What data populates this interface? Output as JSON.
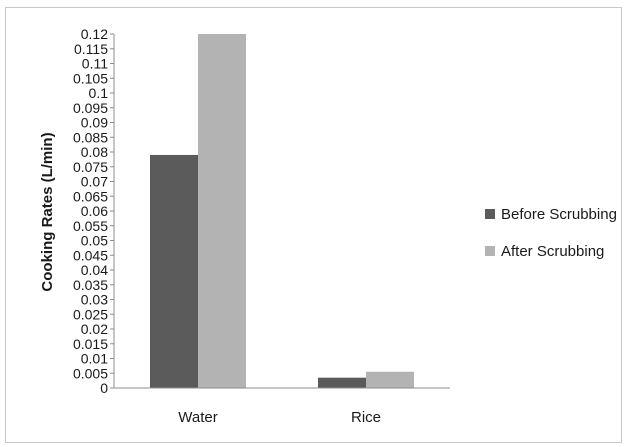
{
  "chart_data": {
    "type": "bar",
    "title": "",
    "xlabel": "",
    "ylabel": "Cooking Rates (L/min)",
    "categories": [
      "Water",
      "Rice"
    ],
    "series": [
      {
        "name": "Before Scrubbing",
        "values": [
          0.079,
          0.0035
        ],
        "color": "#5b5b5b"
      },
      {
        "name": "After Scrubbing",
        "values": [
          0.12,
          0.0055
        ],
        "color": "#b3b3b3"
      }
    ],
    "ylim": [
      0,
      0.12
    ],
    "yticks": [
      "0",
      "0.005",
      "0.01",
      "0.015",
      "0.02",
      "0.025",
      "0.03",
      "0.035",
      "0.04",
      "0.045",
      "0.05",
      "0.055",
      "0.06",
      "0.065",
      "0.07",
      "0.075",
      "0.08",
      "0.085",
      "0.09",
      "0.095",
      "0.1",
      "0.105",
      "0.11",
      "0.115",
      "0.12"
    ],
    "grid": false,
    "legend_position": "right"
  }
}
